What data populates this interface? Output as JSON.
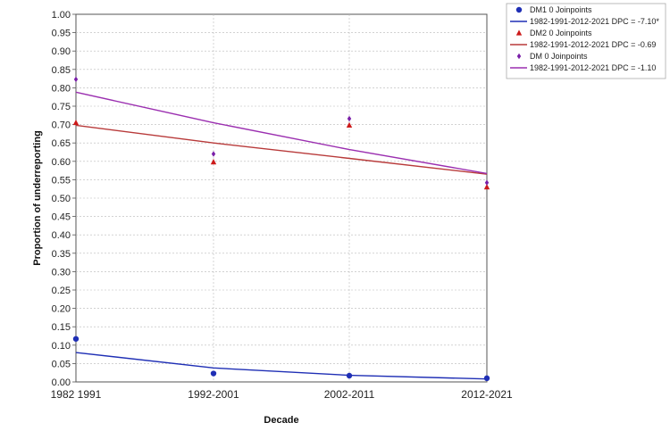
{
  "chart_data": {
    "type": "scatter",
    "xlabel": "Decade",
    "ylabel": "Proportion of underreporting",
    "categories": [
      "1982-1991",
      "1992-2001",
      "2002-2011",
      "2012-2021"
    ],
    "x_tick_labels": [
      "1982  1991",
      "1992-2001",
      "2002-2011",
      "2012-2021"
    ],
    "ylim": [
      0,
      1
    ],
    "y_ticks": [
      "0.00",
      "0.05",
      "0.10",
      "0.15",
      "0.20",
      "0.25",
      "0.30",
      "0.35",
      "0.40",
      "0.45",
      "0.50",
      "0.55",
      "0.60",
      "0.65",
      "0.70",
      "0.75",
      "0.80",
      "0.85",
      "0.90",
      "0.95",
      "1.00"
    ],
    "grid": true,
    "legend_position": "top-right",
    "series": [
      {
        "name": "DM1  0 Joinpoints",
        "marker": "circle",
        "color": "#1f2fb5",
        "values": [
          0.117,
          0.023,
          0.017,
          0.01
        ],
        "fit_name": "1982-1991-2012-2021 DPC  =  -7.10*",
        "fit_values": [
          0.08,
          0.038,
          0.018,
          0.008
        ]
      },
      {
        "name": "DM2  0 Joinpoints",
        "marker": "triangle",
        "color": "#cc1a1a",
        "line_color": "#b83a3a",
        "values": [
          0.705,
          0.598,
          0.698,
          0.53
        ],
        "fit_name": "1982-1991-2012-2021 DPC  =  -0.69",
        "fit_values": [
          0.698,
          0.65,
          0.608,
          0.565
        ]
      },
      {
        "name": "DM  0 Joinpoints",
        "marker": "diamond",
        "color": "#7a1fa8",
        "line_color": "#9b2fb0",
        "values": [
          0.823,
          0.62,
          0.716,
          0.542
        ],
        "fit_name": "1982-1991-2012-2021 DPC  =  -1.10",
        "fit_values": [
          0.788,
          0.705,
          0.632,
          0.567
        ]
      }
    ]
  }
}
